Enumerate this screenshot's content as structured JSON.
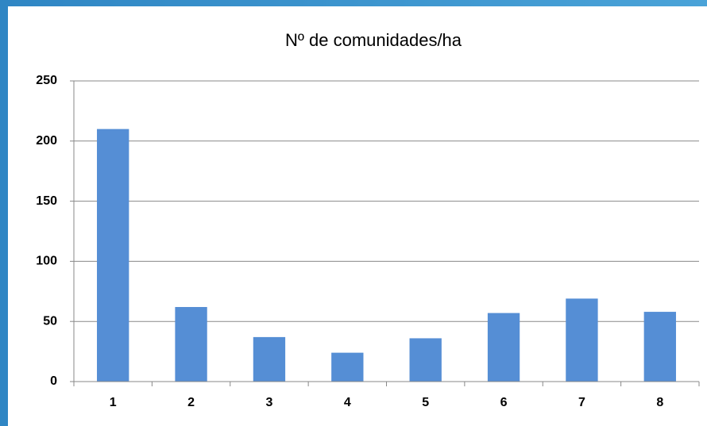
{
  "chart_data": {
    "type": "bar",
    "title": "Nº de comunidades/ha",
    "categories": [
      "1",
      "2",
      "3",
      "4",
      "5",
      "6",
      "7",
      "8"
    ],
    "values": [
      210,
      62,
      37,
      24,
      36,
      57,
      69,
      58
    ],
    "color": "#558ed5",
    "ylim": [
      0,
      250
    ],
    "yticks": [
      0,
      50,
      100,
      150,
      200,
      250
    ],
    "grid": true
  }
}
